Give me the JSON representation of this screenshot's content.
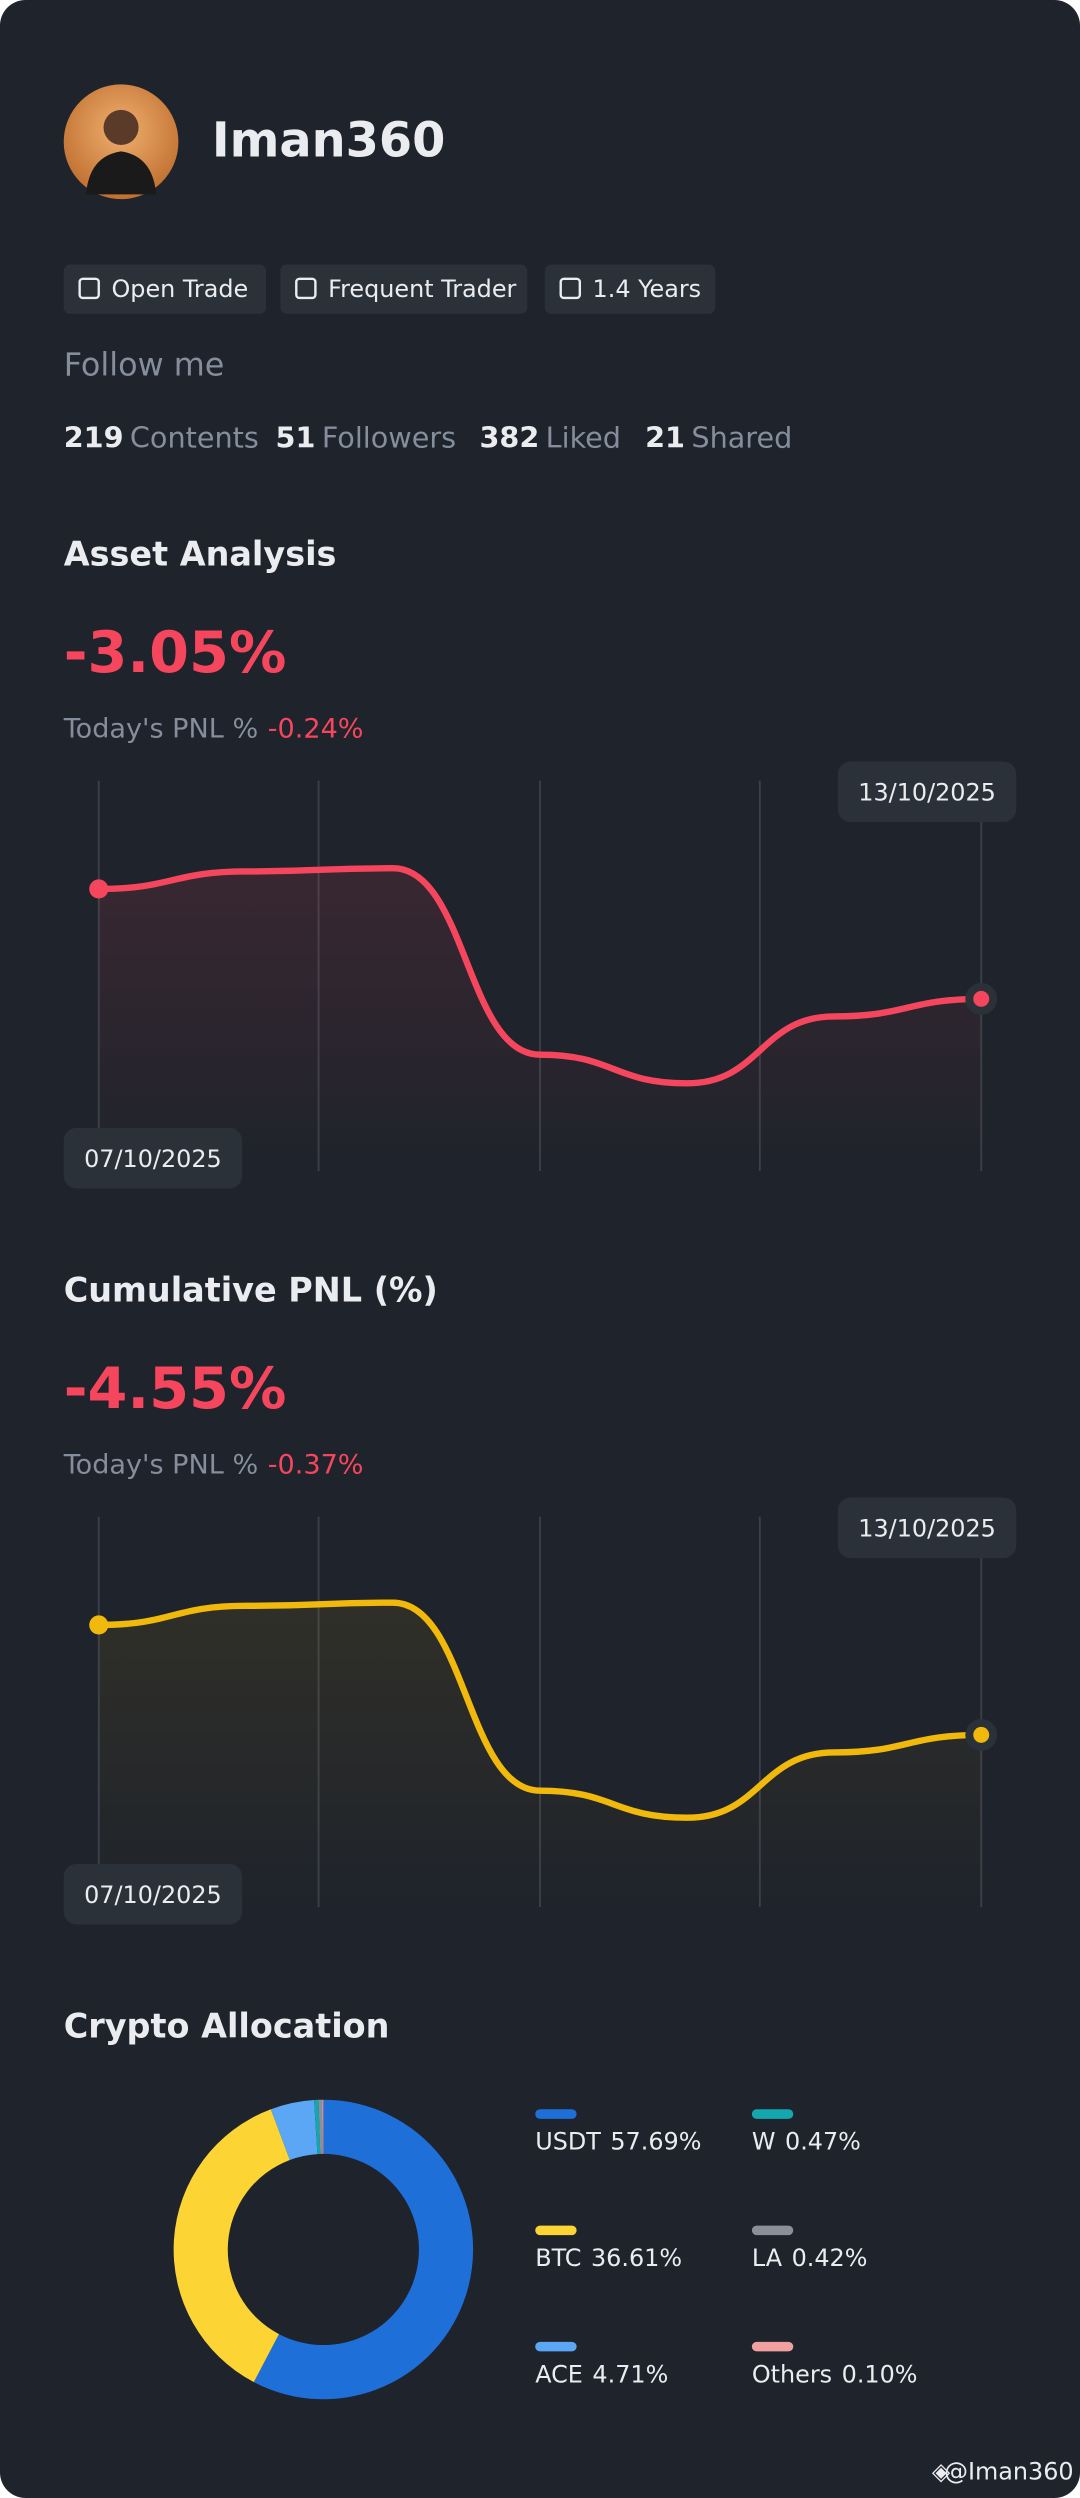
{
  "profile": {
    "name": "Iman360",
    "badges": [
      "Open Trade",
      "Frequent Trader",
      "1.4 Years"
    ],
    "follow_label": "Follow me",
    "stats": [
      {
        "value": 219,
        "label": "Contents"
      },
      {
        "value": 51,
        "label": "Followers"
      },
      {
        "value": 382,
        "label": "Liked"
      },
      {
        "value": 21,
        "label": "Shared"
      }
    ]
  },
  "chart_data": [
    {
      "type": "line",
      "title": "Asset Analysis",
      "headline": "-3.05%",
      "subtitle": "Today's PNL %",
      "subtitle_value": "-0.24%",
      "categories": [
        "07/10/2025",
        null,
        null,
        null,
        null,
        null,
        "13/10/2025"
      ],
      "values": [
        -2.36,
        -2.25,
        -2.23,
        -3.4,
        -3.58,
        -3.16,
        -3.05
      ],
      "color": "#f6465d",
      "ylim": [
        -4.13,
        -1.68
      ]
    },
    {
      "type": "line",
      "title": "Cumulative PNL (%)",
      "headline": "-4.55%",
      "subtitle": "Today's PNL %",
      "subtitle_value": "-0.37%",
      "categories": [
        "07/10/2025",
        null,
        null,
        null,
        null,
        null,
        "13/10/2025"
      ],
      "values": [
        -3.86,
        -3.74,
        -3.72,
        -4.9,
        -5.07,
        -4.66,
        -4.55
      ],
      "color": "#f0b90b",
      "ylim": [
        -5.63,
        -3.18
      ]
    },
    {
      "type": "pie",
      "title": "Crypto Allocation",
      "categories": [
        "USDT",
        "BTC",
        "ACE",
        "W",
        "LA",
        "Others"
      ],
      "values": [
        57.69,
        36.61,
        4.71,
        0.47,
        0.42,
        0.1
      ],
      "value_labels": [
        "57.69%",
        "36.61%",
        "4.71%",
        "0.47%",
        "0.42%",
        "0.10%"
      ],
      "colors": [
        "#1f6fd9",
        "#fcd535",
        "#5ba7f5",
        "#13a8b0",
        "#8a8f98",
        "#f0a0a0"
      ]
    }
  ],
  "watermark": "@Iman360"
}
